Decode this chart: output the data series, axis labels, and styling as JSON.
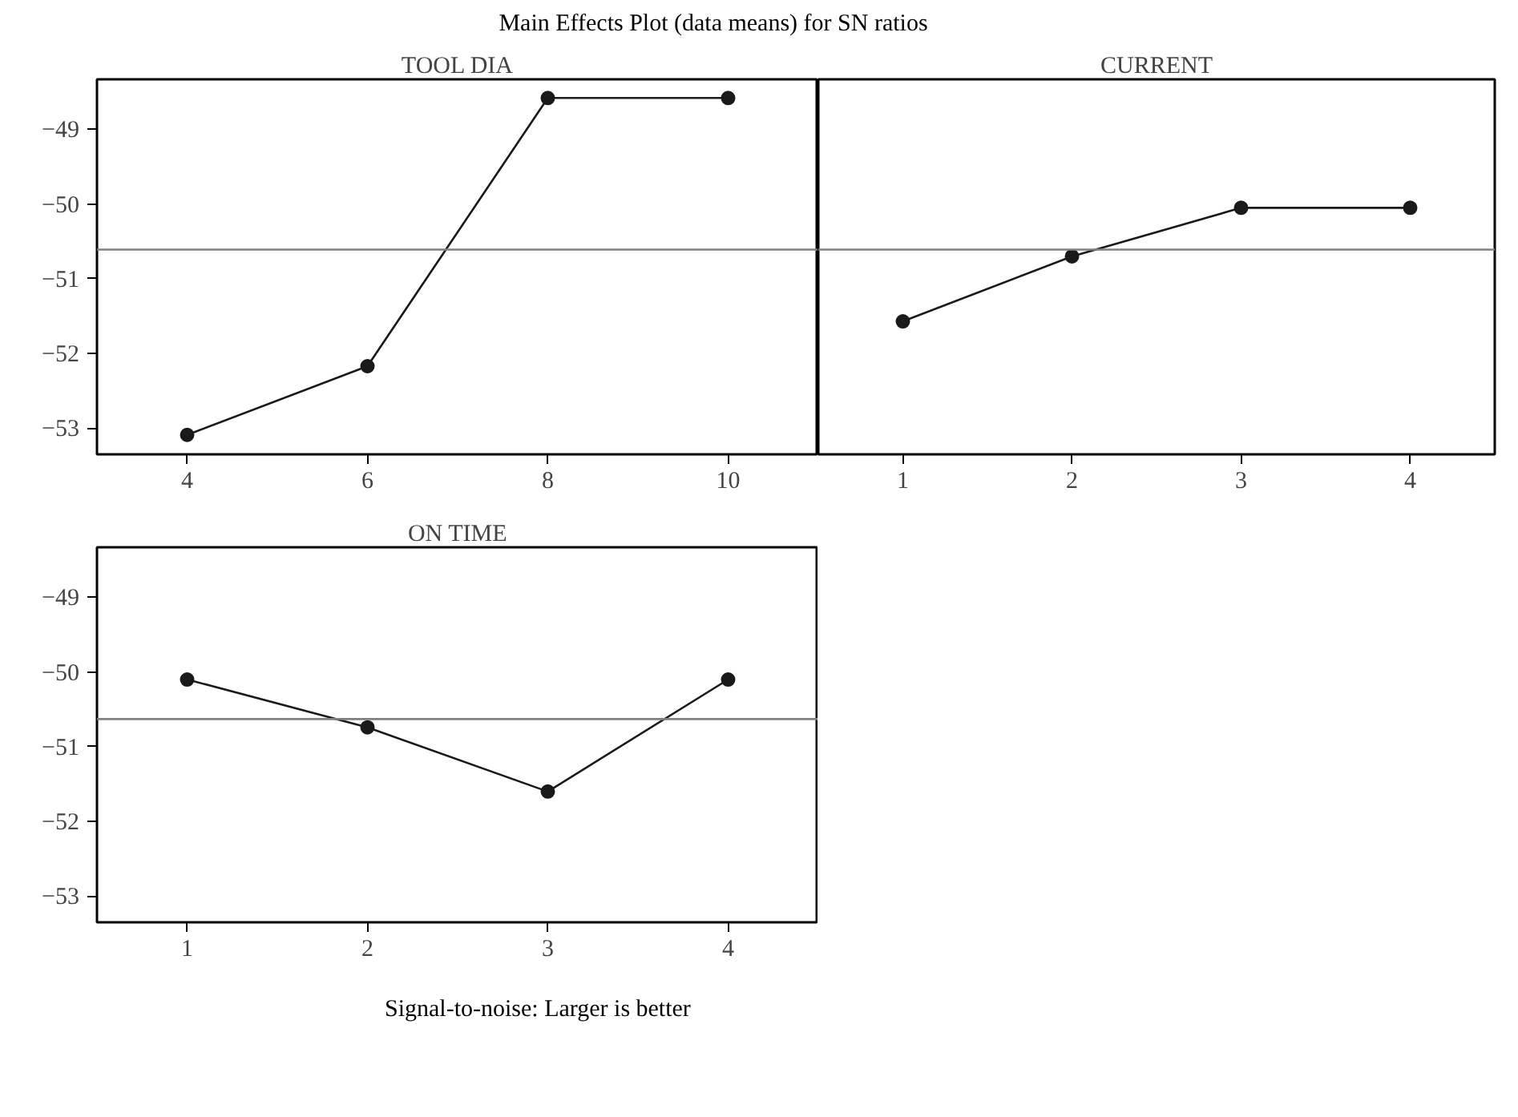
{
  "chart_data": [
    {
      "type": "line",
      "title": "TOOL DIA",
      "x": [
        4,
        6,
        8,
        10
      ],
      "xlim": [
        3,
        11
      ],
      "xticks": [
        4,
        6,
        8,
        10
      ],
      "ylim": [
        -53.35,
        -48.33
      ],
      "yticks": [
        -53,
        -52,
        -51,
        -50,
        -49
      ],
      "marker": "circle",
      "grid": false,
      "series": [
        {
          "color": "#1a1a1a",
          "values": [
            -53.09,
            -52.17,
            -48.58,
            -48.58
          ]
        }
      ],
      "ref_lines": [
        {
          "axis": "y",
          "value": -50.61,
          "color": "#808080"
        }
      ]
    },
    {
      "type": "line",
      "title": "CURRENT",
      "x": [
        1,
        2,
        3,
        4
      ],
      "xlim": [
        0.5,
        4.5
      ],
      "xticks": [
        1,
        2,
        3,
        4
      ],
      "ylim": [
        -53.35,
        -48.33
      ],
      "yticks": [
        -53,
        -52,
        -51,
        -50,
        -49
      ],
      "marker": "circle",
      "grid": false,
      "tick_labels": "x",
      "series": [
        {
          "color": "#1a1a1a",
          "values": [
            -51.57,
            -50.7,
            -50.05,
            -50.05
          ]
        }
      ],
      "ref_lines": [
        {
          "axis": "y",
          "value": -50.61,
          "color": "#808080"
        }
      ]
    },
    {
      "type": "line",
      "title": "ON TIME",
      "x": [
        1,
        2,
        3,
        4
      ],
      "xlim": [
        0.5,
        4.5
      ],
      "xticks": [
        1,
        2,
        3,
        4
      ],
      "ylim": [
        -53.35,
        -48.33
      ],
      "yticks": [
        -53,
        -52,
        -51,
        -50,
        -49
      ],
      "marker": "circle",
      "grid": false,
      "series": [
        {
          "color": "#1a1a1a",
          "values": [
            -50.1,
            -50.74,
            -51.6,
            -50.1
          ]
        }
      ],
      "ref_lines": [
        {
          "axis": "y",
          "value": -50.63,
          "color": "#808080"
        }
      ]
    },
    {
      "type": "other",
      "title": "Main Effects Plot (data means) for SN ratios",
      "annotations": [
        "Signal-to-noise: Larger is better"
      ]
    }
  ]
}
